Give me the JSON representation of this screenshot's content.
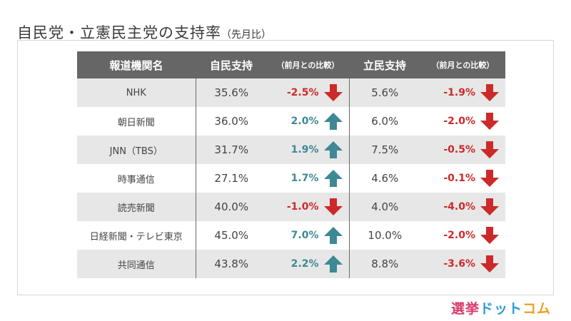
{
  "title": "自民党・立憲民主党の支持率",
  "subtitle": "（先月比）",
  "table": {
    "headers": [
      "報道機関名",
      "自民支持",
      "（前月との比較）",
      "立民支持",
      "（前月との比較）"
    ],
    "rows": [
      {
        "media": "NHK",
        "ldp": "35.6%",
        "ldp_change": "-2.5%",
        "ldp_dir": "down",
        "cdp": "5.6%",
        "cdp_change": "-1.9%",
        "cdp_dir": "down"
      },
      {
        "media": "朝日新聞",
        "ldp": "36.0%",
        "ldp_change": "2.0%",
        "ldp_dir": "up",
        "cdp": "6.0%",
        "cdp_change": "-2.0%",
        "cdp_dir": "down"
      },
      {
        "media": "JNN（TBS）",
        "ldp": "31.7%",
        "ldp_change": "1.9%",
        "ldp_dir": "up",
        "cdp": "7.5%",
        "cdp_change": "-0.5%",
        "cdp_dir": "down"
      },
      {
        "media": "時事通信",
        "ldp": "27.1%",
        "ldp_change": "1.7%",
        "ldp_dir": "up",
        "cdp": "4.6%",
        "cdp_change": "-0.1%",
        "cdp_dir": "down"
      },
      {
        "media": "読売新聞",
        "ldp": "40.0%",
        "ldp_change": "-1.0%",
        "ldp_dir": "down",
        "cdp": "4.0%",
        "cdp_change": "-4.0%",
        "cdp_dir": "down"
      },
      {
        "media": "日経新聞・テレビ東京",
        "ldp": "45.0%",
        "ldp_change": "7.0%",
        "ldp_dir": "up",
        "cdp": "10.0%",
        "cdp_change": "-2.0%",
        "cdp_dir": "down"
      },
      {
        "media": "共同通信",
        "ldp": "43.8%",
        "ldp_change": "2.2%",
        "ldp_dir": "up",
        "cdp": "8.8%",
        "cdp_change": "-3.6%",
        "cdp_dir": "down"
      }
    ]
  },
  "colors": {
    "up": "#3f8896",
    "down": "#cc2a2a",
    "header_bg": "#666666"
  },
  "logo": {
    "part1": "選挙",
    "part2": "ドット",
    "part3": "コム"
  }
}
